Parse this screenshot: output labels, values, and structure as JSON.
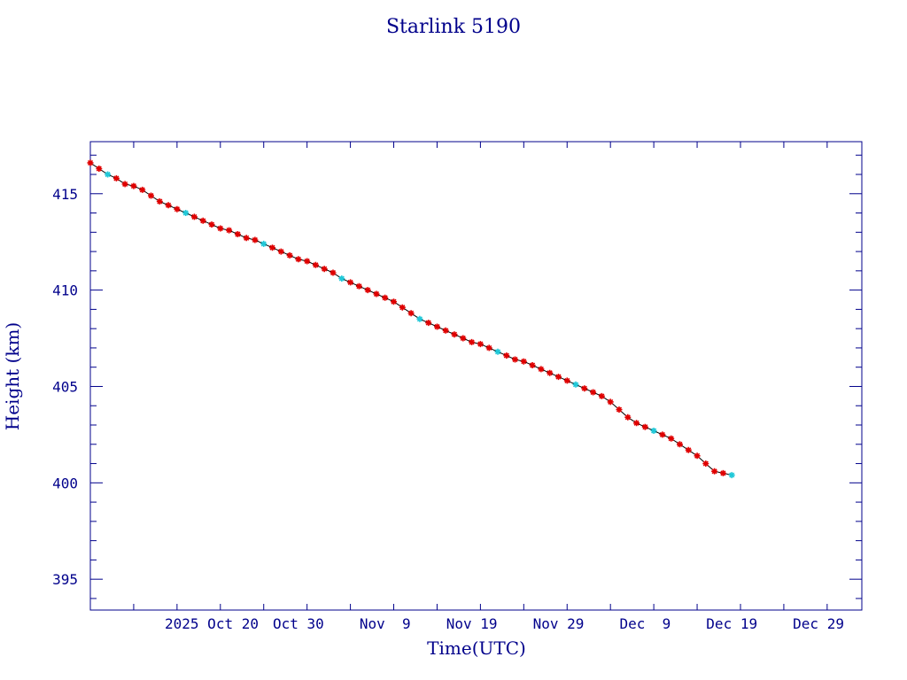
{
  "chart_data": {
    "type": "scatter",
    "title": "Starlink 5190",
    "xlabel": "Time(UTC)",
    "ylabel": "Height (km)",
    "x_axis_type": "date",
    "xlim": [
      "2025-10-06",
      "2026-01-03"
    ],
    "ylim": [
      393.4,
      417.7
    ],
    "yticks": [
      395,
      400,
      405,
      410,
      415
    ],
    "xticks": [
      {
        "date": "2025-10-20",
        "label": "2025 Oct 20"
      },
      {
        "date": "2025-10-30",
        "label": "Oct 30"
      },
      {
        "date": "2025-11-09",
        "label": "Nov  9"
      },
      {
        "date": "2025-11-19",
        "label": "Nov 19"
      },
      {
        "date": "2025-11-29",
        "label": "Nov 29"
      },
      {
        "date": "2025-12-09",
        "label": "Dec  9"
      },
      {
        "date": "2025-12-19",
        "label": "Dec 19"
      },
      {
        "date": "2025-12-29",
        "label": "Dec 29"
      }
    ],
    "grid": false,
    "colors": {
      "axis": "#00008b",
      "line": "#000000",
      "marker": "#e00000",
      "marker_alt": "#20c8d8"
    },
    "series": [
      {
        "points": [
          [
            "2025-10-06",
            416.6
          ],
          [
            "2025-10-07",
            416.3
          ],
          [
            "2025-10-08",
            416.0
          ],
          [
            "2025-10-09",
            415.8
          ],
          [
            "2025-10-10",
            415.5
          ],
          [
            "2025-10-11",
            415.4
          ],
          [
            "2025-10-12",
            415.2
          ],
          [
            "2025-10-13",
            414.9
          ],
          [
            "2025-10-14",
            414.6
          ],
          [
            "2025-10-15",
            414.4
          ],
          [
            "2025-10-16",
            414.2
          ],
          [
            "2025-10-17",
            414.0
          ],
          [
            "2025-10-18",
            413.8
          ],
          [
            "2025-10-19",
            413.6
          ],
          [
            "2025-10-20",
            413.4
          ],
          [
            "2025-10-21",
            413.2
          ],
          [
            "2025-10-22",
            413.1
          ],
          [
            "2025-10-23",
            412.9
          ],
          [
            "2025-10-24",
            412.7
          ],
          [
            "2025-10-25",
            412.6
          ],
          [
            "2025-10-26",
            412.4
          ],
          [
            "2025-10-27",
            412.2
          ],
          [
            "2025-10-28",
            412.0
          ],
          [
            "2025-10-29",
            411.8
          ],
          [
            "2025-10-30",
            411.6
          ],
          [
            "2025-10-31",
            411.5
          ],
          [
            "2025-11-01",
            411.3
          ],
          [
            "2025-11-02",
            411.1
          ],
          [
            "2025-11-03",
            410.9
          ],
          [
            "2025-11-04",
            410.6
          ],
          [
            "2025-11-05",
            410.4
          ],
          [
            "2025-11-06",
            410.2
          ],
          [
            "2025-11-07",
            410.0
          ],
          [
            "2025-11-08",
            409.8
          ],
          [
            "2025-11-09",
            409.6
          ],
          [
            "2025-11-10",
            409.4
          ],
          [
            "2025-11-11",
            409.1
          ],
          [
            "2025-11-12",
            408.8
          ],
          [
            "2025-11-13",
            408.5
          ],
          [
            "2025-11-14",
            408.3
          ],
          [
            "2025-11-15",
            408.1
          ],
          [
            "2025-11-16",
            407.9
          ],
          [
            "2025-11-17",
            407.7
          ],
          [
            "2025-11-18",
            407.5
          ],
          [
            "2025-11-19",
            407.3
          ],
          [
            "2025-11-20",
            407.2
          ],
          [
            "2025-11-21",
            407.0
          ],
          [
            "2025-11-22",
            406.8
          ],
          [
            "2025-11-23",
            406.6
          ],
          [
            "2025-11-24",
            406.4
          ],
          [
            "2025-11-25",
            406.3
          ],
          [
            "2025-11-26",
            406.1
          ],
          [
            "2025-11-27",
            405.9
          ],
          [
            "2025-11-28",
            405.7
          ],
          [
            "2025-11-29",
            405.5
          ],
          [
            "2025-11-30",
            405.3
          ],
          [
            "2025-12-01",
            405.1
          ],
          [
            "2025-12-02",
            404.9
          ],
          [
            "2025-12-03",
            404.7
          ],
          [
            "2025-12-04",
            404.5
          ],
          [
            "2025-12-05",
            404.2
          ],
          [
            "2025-12-06",
            403.8
          ],
          [
            "2025-12-07",
            403.4
          ],
          [
            "2025-12-08",
            403.1
          ],
          [
            "2025-12-09",
            402.9
          ],
          [
            "2025-12-10",
            402.7
          ],
          [
            "2025-12-11",
            402.5
          ],
          [
            "2025-12-12",
            402.3
          ],
          [
            "2025-12-13",
            402.0
          ],
          [
            "2025-12-14",
            401.7
          ],
          [
            "2025-12-15",
            401.4
          ],
          [
            "2025-12-16",
            401.0
          ],
          [
            "2025-12-17",
            400.6
          ],
          [
            "2025-12-18",
            400.5
          ],
          [
            "2025-12-19",
            400.4
          ]
        ]
      }
    ]
  }
}
